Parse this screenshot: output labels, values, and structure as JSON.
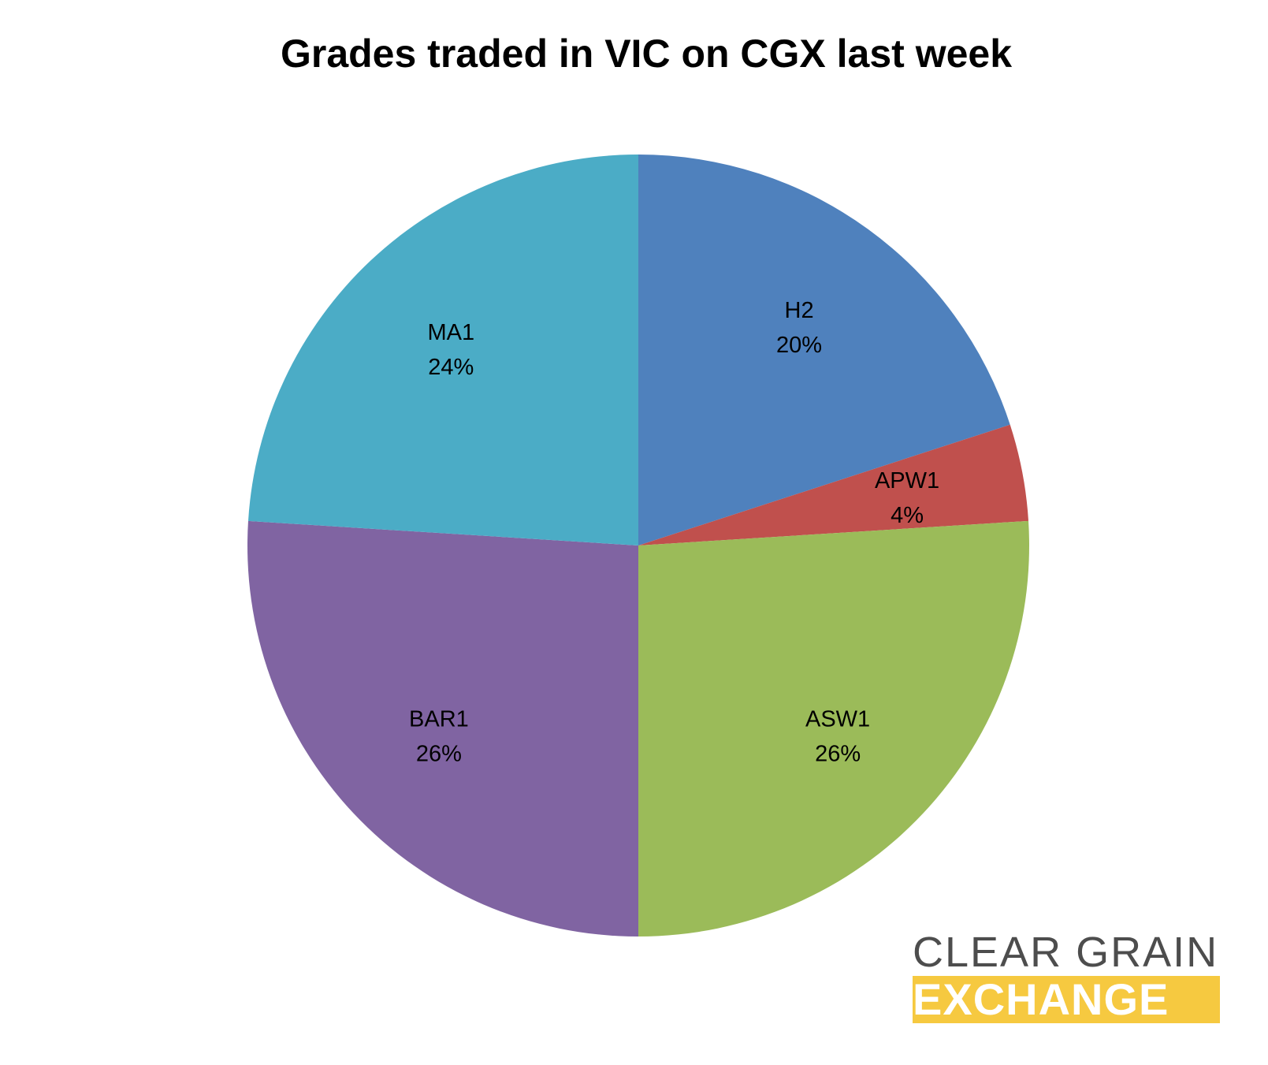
{
  "chart_data": {
    "type": "pie",
    "title": "Grades traded in VIC on CGX last week",
    "start": "12 o'clock",
    "direction": "clockwise",
    "slices": [
      {
        "label": "H2",
        "value": 20,
        "display": "20%",
        "color": "#4f81bd"
      },
      {
        "label": "APW1",
        "value": 4,
        "display": "4%",
        "color": "#c0504d"
      },
      {
        "label": "ASW1",
        "value": 26,
        "display": "26%",
        "color": "#9bbb59"
      },
      {
        "label": "BAR1",
        "value": 26,
        "display": "26%",
        "color": "#8064a2"
      },
      {
        "label": "MA1",
        "value": 24,
        "display": "24%",
        "color": "#4bacc6"
      }
    ]
  },
  "logo": {
    "line1": "CLEAR GRAIN",
    "line2": "EXCHANGE"
  }
}
